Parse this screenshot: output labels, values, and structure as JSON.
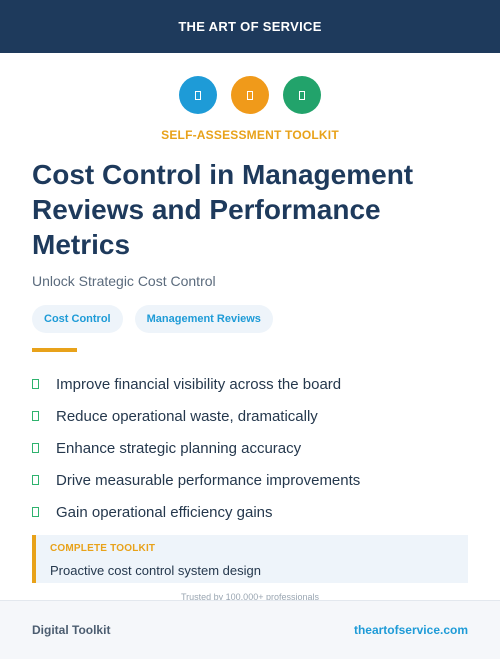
{
  "header": {
    "title": "THE ART OF SERVICE"
  },
  "icons": [
    {
      "name": "document-icon",
      "color": "#1e9bd7"
    },
    {
      "name": "clipboard-icon",
      "color": "#f09a1a"
    },
    {
      "name": "chart-icon",
      "color": "#22a36b"
    }
  ],
  "kicker": "SELF-ASSESSMENT TOOLKIT",
  "title": "Cost Control in Management Reviews and Performance Metrics",
  "subtitle": "Unlock Strategic Cost Control",
  "tags": [
    "Cost Control",
    "Management Reviews"
  ],
  "benefits": [
    "Improve financial visibility across the board",
    "Reduce operational waste, dramatically",
    "Enhance strategic planning accuracy",
    "Drive measurable performance improvements",
    "Gain operational efficiency gains"
  ],
  "callout": {
    "label": "COMPLETE TOOLKIT",
    "text": "Proactive cost control system design"
  },
  "trusted": "Trusted by 100,000+ professionals",
  "footer": {
    "left": "Digital Toolkit",
    "right": "theartofservice.com"
  },
  "colors": {
    "navy": "#1e3a5c",
    "accent_orange": "#e8a21a",
    "accent_blue": "#1e9bd7",
    "check_green": "#2fb36e"
  }
}
